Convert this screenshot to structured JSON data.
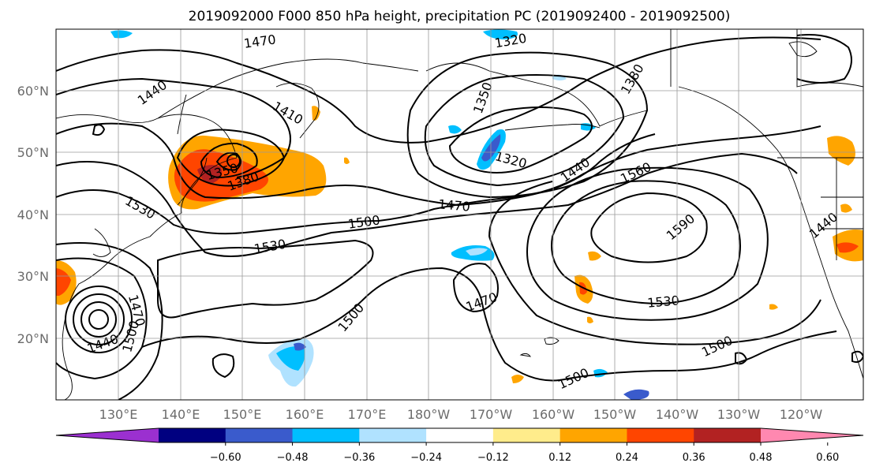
{
  "title": "2019092000 F000 850 hPa height, precipitation PC (2019092400 - 2019092500)",
  "latitude_labels": [
    "20°N",
    "30°N",
    "40°N",
    "50°N",
    "60°N"
  ],
  "longitude_labels": [
    "130°E",
    "140°E",
    "150°E",
    "160°E",
    "170°E",
    "180°W",
    "170°W",
    "160°W",
    "150°W",
    "140°W",
    "130°W",
    "120°W"
  ],
  "colorbar": {
    "tick_labels": [
      "−0.60",
      "−0.48",
      "−0.36",
      "−0.24",
      "−0.12",
      "0.12",
      "0.24",
      "0.36",
      "0.48",
      "0.60"
    ],
    "colors": [
      "#9b30d0",
      "#000080",
      "#3a5bcc",
      "#00bfff",
      "#b0e2ff",
      "#ffffff",
      "#ffec8b",
      "#ffa500",
      "#ff4500",
      "#b22222",
      "#ff88b0"
    ]
  },
  "contour_labels": [
    "1470",
    "1320",
    "1350",
    "1440",
    "1410",
    "1380",
    "1350",
    "1320",
    "1440",
    "1380",
    "1530",
    "1500",
    "1470",
    "1560",
    "1590",
    "1530",
    "1500",
    "1470",
    "1530",
    "1500",
    "1500",
    "1470",
    "1440",
    "1500",
    "1440"
  ]
}
